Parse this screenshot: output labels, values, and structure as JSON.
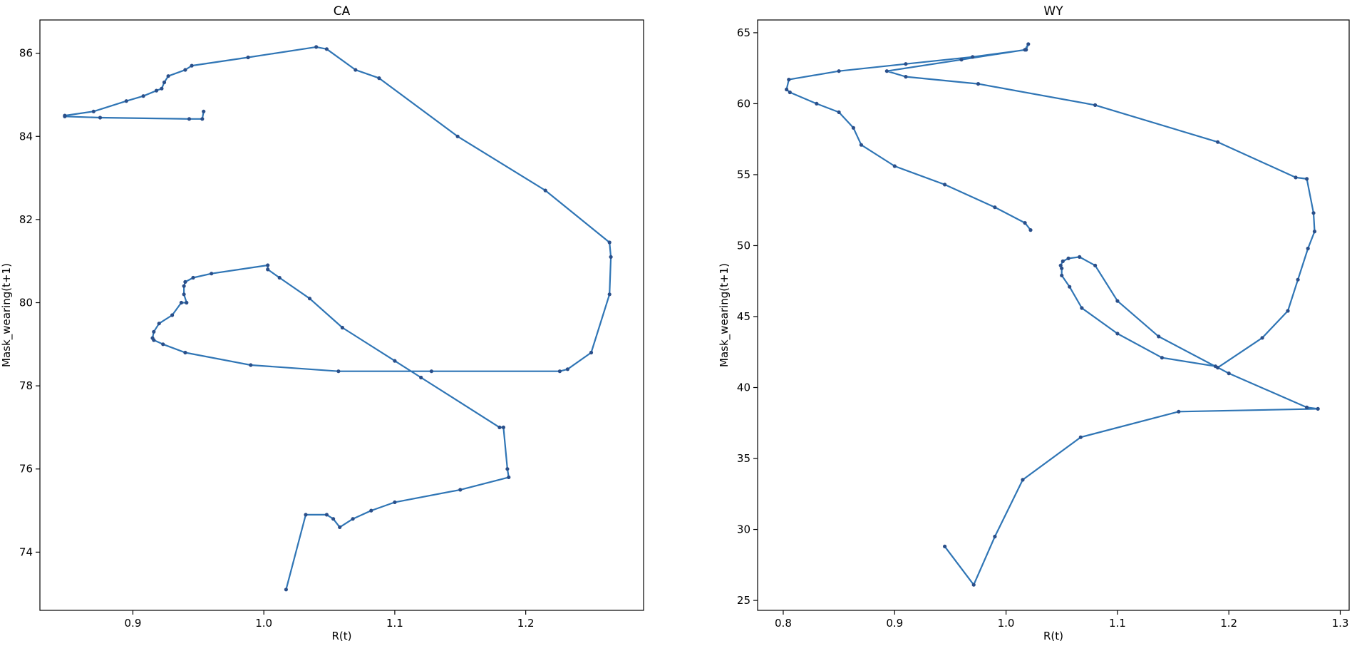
{
  "chart_data": [
    {
      "type": "line",
      "title": "CA",
      "xlabel": "R(t)",
      "ylabel": "Mask_wearing(t+1)",
      "xlim": [
        0.829,
        1.29
      ],
      "ylim": [
        72.6,
        86.8
      ],
      "xticks": [
        "0.9",
        "1.0",
        "1.1",
        "1.2"
      ],
      "yticks": [
        "74",
        "76",
        "78",
        "80",
        "82",
        "84",
        "86"
      ],
      "series": [
        {
          "x": [
            1.017,
            1.032,
            1.048,
            1.053,
            1.058,
            1.068,
            1.082,
            1.1,
            1.15,
            1.187,
            1.186,
            1.183,
            1.18,
            1.12,
            1.1,
            1.06,
            1.035,
            1.012,
            1.003,
            1.003,
            0.96,
            0.946,
            0.94,
            0.939,
            0.939,
            0.941,
            0.937,
            0.93,
            0.92,
            0.916,
            0.915,
            0.916,
            0.923,
            0.94,
            0.99,
            1.057,
            1.128,
            1.226,
            1.232,
            1.25,
            1.264,
            1.265,
            1.264,
            1.215,
            1.148,
            1.088,
            1.07,
            1.048,
            1.04,
            0.988,
            0.945,
            0.94,
            0.927,
            0.924,
            0.922,
            0.918,
            0.908,
            0.895,
            0.87,
            0.848,
            0.848,
            0.875,
            0.943,
            0.953,
            0.954
          ],
          "y": [
            73.1,
            74.9,
            74.9,
            74.8,
            74.6,
            74.8,
            75.0,
            75.2,
            75.5,
            75.8,
            76.0,
            77.0,
            77.0,
            78.2,
            78.6,
            79.4,
            80.1,
            80.6,
            80.8,
            80.9,
            80.7,
            80.6,
            80.5,
            80.4,
            80.2,
            80.0,
            80.0,
            79.7,
            79.5,
            79.3,
            79.15,
            79.1,
            79.0,
            78.8,
            78.5,
            78.35,
            78.35,
            78.35,
            78.4,
            78.8,
            80.2,
            81.1,
            81.45,
            82.7,
            84.0,
            85.4,
            85.6,
            86.1,
            86.15,
            85.9,
            85.7,
            85.6,
            85.45,
            85.3,
            85.15,
            85.1,
            84.97,
            84.85,
            84.6,
            84.5,
            84.48,
            84.45,
            84.42,
            84.42,
            84.6
          ]
        }
      ]
    },
    {
      "type": "line",
      "title": "WY",
      "xlabel": "R(t)",
      "ylabel": "Mask_wearing(t+1)",
      "xlim": [
        0.777,
        1.308
      ],
      "ylim": [
        24.3,
        65.9
      ],
      "xticks": [
        "0.8",
        "0.9",
        "1.0",
        "1.1",
        "1.2",
        "1.3"
      ],
      "yticks": [
        "25",
        "30",
        "35",
        "40",
        "45",
        "50",
        "55",
        "60",
        "65"
      ],
      "series": [
        {
          "x": [
            0.945,
            0.971,
            0.99,
            1.015,
            1.067,
            1.155,
            1.28,
            1.27,
            1.2,
            1.188,
            1.14,
            1.1,
            1.068,
            1.057,
            1.05,
            1.05,
            1.049,
            1.051,
            1.056,
            1.066,
            1.08,
            1.1,
            1.137,
            1.19,
            1.23,
            1.253,
            1.262,
            1.271,
            1.277,
            1.276,
            1.27,
            1.26,
            1.19,
            1.08,
            0.975,
            0.91,
            0.893,
            0.96,
            1.017,
            1.02,
            1.018,
            0.97,
            0.91,
            0.85,
            0.805,
            0.803,
            0.806,
            0.83,
            0.85,
            0.863,
            0.87,
            0.9,
            0.945,
            0.99,
            1.017,
            1.022
          ],
          "y": [
            28.8,
            26.1,
            29.5,
            33.5,
            36.5,
            38.3,
            38.5,
            38.6,
            41.0,
            41.5,
            42.1,
            43.8,
            45.6,
            47.1,
            47.9,
            48.4,
            48.6,
            48.9,
            49.1,
            49.2,
            48.6,
            46.1,
            43.6,
            41.4,
            43.5,
            45.4,
            47.6,
            49.8,
            51.0,
            52.3,
            54.7,
            54.8,
            57.3,
            59.9,
            61.4,
            61.9,
            62.3,
            63.1,
            63.8,
            64.2,
            63.8,
            63.3,
            62.8,
            62.3,
            61.7,
            61.0,
            60.8,
            60.0,
            59.4,
            58.3,
            57.1,
            55.6,
            54.3,
            52.7,
            51.6,
            51.1
          ]
        }
      ]
    }
  ]
}
